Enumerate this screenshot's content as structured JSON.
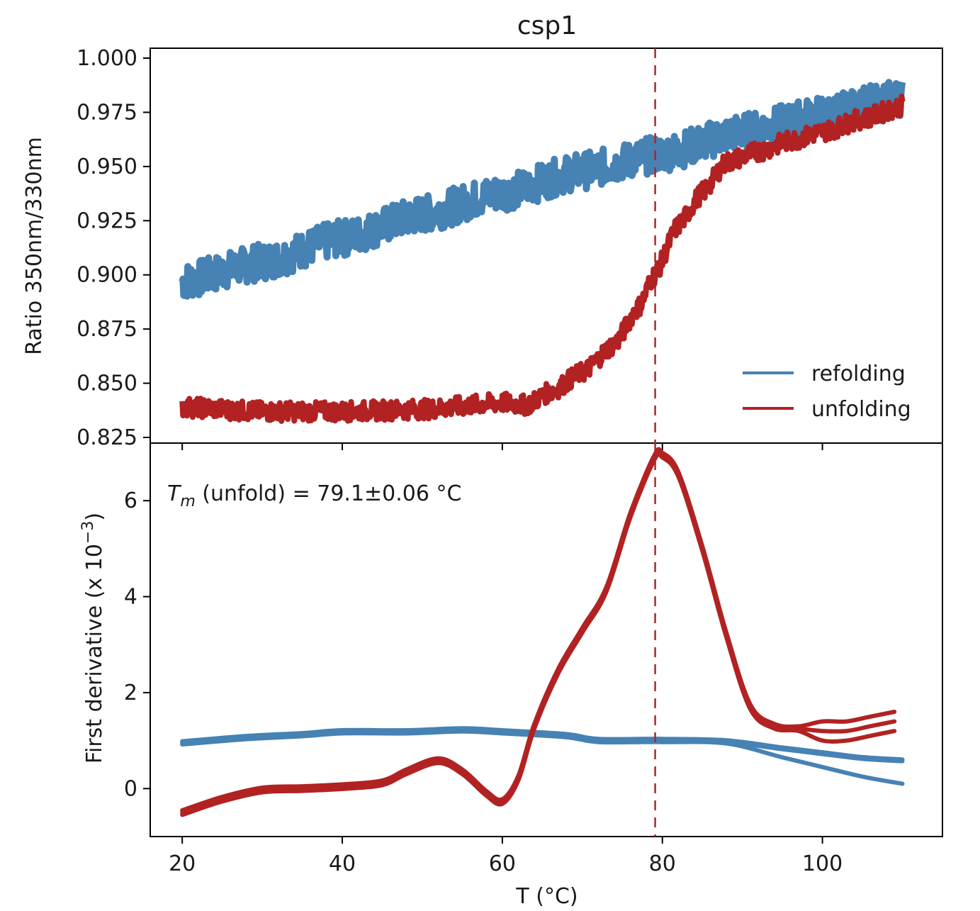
{
  "chart_data": [
    {
      "type": "line",
      "title": "csp1",
      "xlabel": "",
      "ylabel": "Ratio 350nm/330nm",
      "xlim": [
        16,
        115
      ],
      "ylim": [
        0.825,
        1.0
      ],
      "yticks": [
        "0.825",
        "0.850",
        "0.875",
        "0.900",
        "0.925",
        "0.950",
        "0.975",
        "1.000"
      ],
      "ytick_values": [
        0.825,
        0.85,
        0.875,
        0.9,
        0.925,
        0.95,
        0.975,
        1.0
      ],
      "vline_x": 79.1,
      "legend_position": "lower-right",
      "series": [
        {
          "name": "refolding",
          "color": "#4682b4",
          "x": [
            20,
            30,
            40,
            50,
            60,
            70,
            80,
            90,
            100,
            110
          ],
          "y": [
            0.897,
            0.906,
            0.917,
            0.928,
            0.938,
            0.948,
            0.956,
            0.966,
            0.974,
            0.982
          ]
        },
        {
          "name": "unfolding",
          "color": "#b22222",
          "x": [
            20,
            30,
            40,
            50,
            60,
            63,
            66,
            70,
            74,
            77,
            79,
            82,
            85,
            88,
            92,
            96,
            100,
            105,
            110
          ],
          "y": [
            0.839,
            0.837,
            0.837,
            0.838,
            0.841,
            0.84,
            0.846,
            0.855,
            0.868,
            0.885,
            0.9,
            0.923,
            0.938,
            0.952,
            0.957,
            0.962,
            0.966,
            0.972,
            0.978
          ]
        }
      ]
    },
    {
      "type": "line",
      "title": "",
      "xlabel": "T (°C)",
      "ylabel": "First derivative (x 10",
      "ylabel_exponent": "−3",
      "ylabel_close": ")",
      "xlim": [
        16,
        115
      ],
      "ylim": [
        -1.0,
        7.2
      ],
      "xticks": [
        "20",
        "40",
        "60",
        "80",
        "100"
      ],
      "xtick_values": [
        20,
        40,
        60,
        80,
        100
      ],
      "yticks": [
        "0",
        "2",
        "4",
        "6"
      ],
      "ytick_values": [
        0,
        2,
        4,
        6
      ],
      "vline_x": 79.1,
      "annotation": {
        "symbol": "T",
        "subscript": "m",
        "text": " (unfold) = 79.1±0.06 °C"
      },
      "series": [
        {
          "name": "refolding",
          "color": "#4682b4",
          "x": [
            20,
            28,
            35,
            40,
            48,
            55,
            60,
            68,
            72,
            80,
            88,
            95,
            100,
            105,
            110
          ],
          "y": [
            0.95,
            1.06,
            1.12,
            1.18,
            1.18,
            1.22,
            1.18,
            1.1,
            1.0,
            1.0,
            0.97,
            0.82,
            0.72,
            0.62,
            0.57
          ]
        },
        {
          "name": "unfolding",
          "color": "#b22222",
          "x": [
            20,
            25,
            30,
            35,
            40,
            45,
            48,
            52,
            55,
            58,
            60,
            62,
            64,
            67,
            70,
            73,
            76,
            79,
            80,
            82,
            85,
            88,
            91,
            94,
            97,
            100,
            103,
            106,
            109
          ],
          "y": [
            -0.5,
            -0.22,
            -0.03,
            0.0,
            0.04,
            0.12,
            0.35,
            0.58,
            0.35,
            -0.1,
            -0.27,
            0.22,
            1.3,
            2.45,
            3.3,
            4.15,
            5.7,
            6.9,
            6.95,
            6.55,
            5.0,
            3.2,
            1.7,
            1.3,
            1.25,
            1.2,
            1.2,
            1.3,
            1.4
          ]
        }
      ]
    }
  ]
}
